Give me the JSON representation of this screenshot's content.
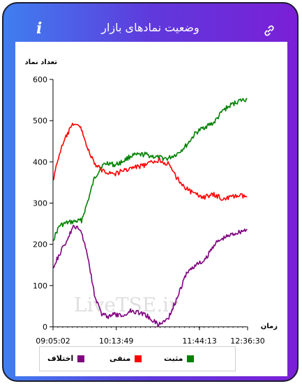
{
  "header": {
    "title": "وضعیت نمادهای بازار",
    "info_glyph": "i",
    "info_icon": "info-icon",
    "link_icon": "link-icon"
  },
  "watermark": "LiveTSE.ir",
  "colors": {
    "frame_start": "#3f7ff0",
    "frame_end": "#7b1fd6",
    "positive": "#008000",
    "negative": "#ff0000",
    "difference": "#800080"
  },
  "chart_data": {
    "type": "line",
    "ylabel": "تعداد نماد",
    "xlabel": "زمان",
    "ylim": [
      0,
      600
    ],
    "yticks": [
      0,
      100,
      200,
      300,
      400,
      500,
      600
    ],
    "x_tick_labels": [
      "09:05:02",
      "10:13:49",
      "11:44:13",
      "12:36:30"
    ],
    "x_start": "09:05:02",
    "x_end": "12:36:30",
    "grid": false,
    "legend_position": "bottom",
    "series": [
      {
        "name": "مثبت",
        "color": "#008000",
        "x": [
          "09:05",
          "09:12",
          "09:20",
          "09:28",
          "09:36",
          "09:43",
          "09:50",
          "09:58",
          "10:05",
          "10:12",
          "10:20",
          "10:30",
          "10:45",
          "11:00",
          "11:10",
          "11:20",
          "11:30",
          "11:40",
          "11:50",
          "12:00",
          "12:10",
          "12:20",
          "12:27",
          "12:36"
        ],
        "values": [
          210,
          245,
          252,
          255,
          258,
          305,
          360,
          390,
          398,
          392,
          400,
          415,
          418,
          410,
          408,
          420,
          440,
          470,
          485,
          495,
          525,
          540,
          548,
          552
        ]
      },
      {
        "name": "منفی",
        "color": "#ff0000",
        "x": [
          "09:05",
          "09:12",
          "09:20",
          "09:28",
          "09:36",
          "09:43",
          "09:50",
          "09:58",
          "10:05",
          "10:12",
          "10:20",
          "10:30",
          "10:45",
          "11:00",
          "11:10",
          "11:20",
          "11:30",
          "11:40",
          "11:50",
          "12:00",
          "12:10",
          "12:20",
          "12:27",
          "12:36"
        ],
        "values": [
          355,
          420,
          465,
          495,
          480,
          430,
          395,
          380,
          375,
          370,
          378,
          385,
          392,
          405,
          395,
          360,
          335,
          320,
          315,
          320,
          310,
          315,
          318,
          315
        ]
      },
      {
        "name": "اختلاف",
        "color": "#800080",
        "x": [
          "09:05",
          "09:12",
          "09:20",
          "09:28",
          "09:36",
          "09:43",
          "09:50",
          "09:58",
          "10:05",
          "10:12",
          "10:20",
          "10:30",
          "10:45",
          "11:00",
          "11:10",
          "11:20",
          "11:30",
          "11:40",
          "11:50",
          "12:00",
          "12:10",
          "12:20",
          "12:27",
          "12:36"
        ],
        "values": [
          145,
          175,
          210,
          245,
          230,
          170,
          80,
          30,
          25,
          30,
          25,
          40,
          30,
          5,
          20,
          70,
          130,
          150,
          160,
          200,
          215,
          225,
          230,
          237
        ]
      }
    ]
  }
}
